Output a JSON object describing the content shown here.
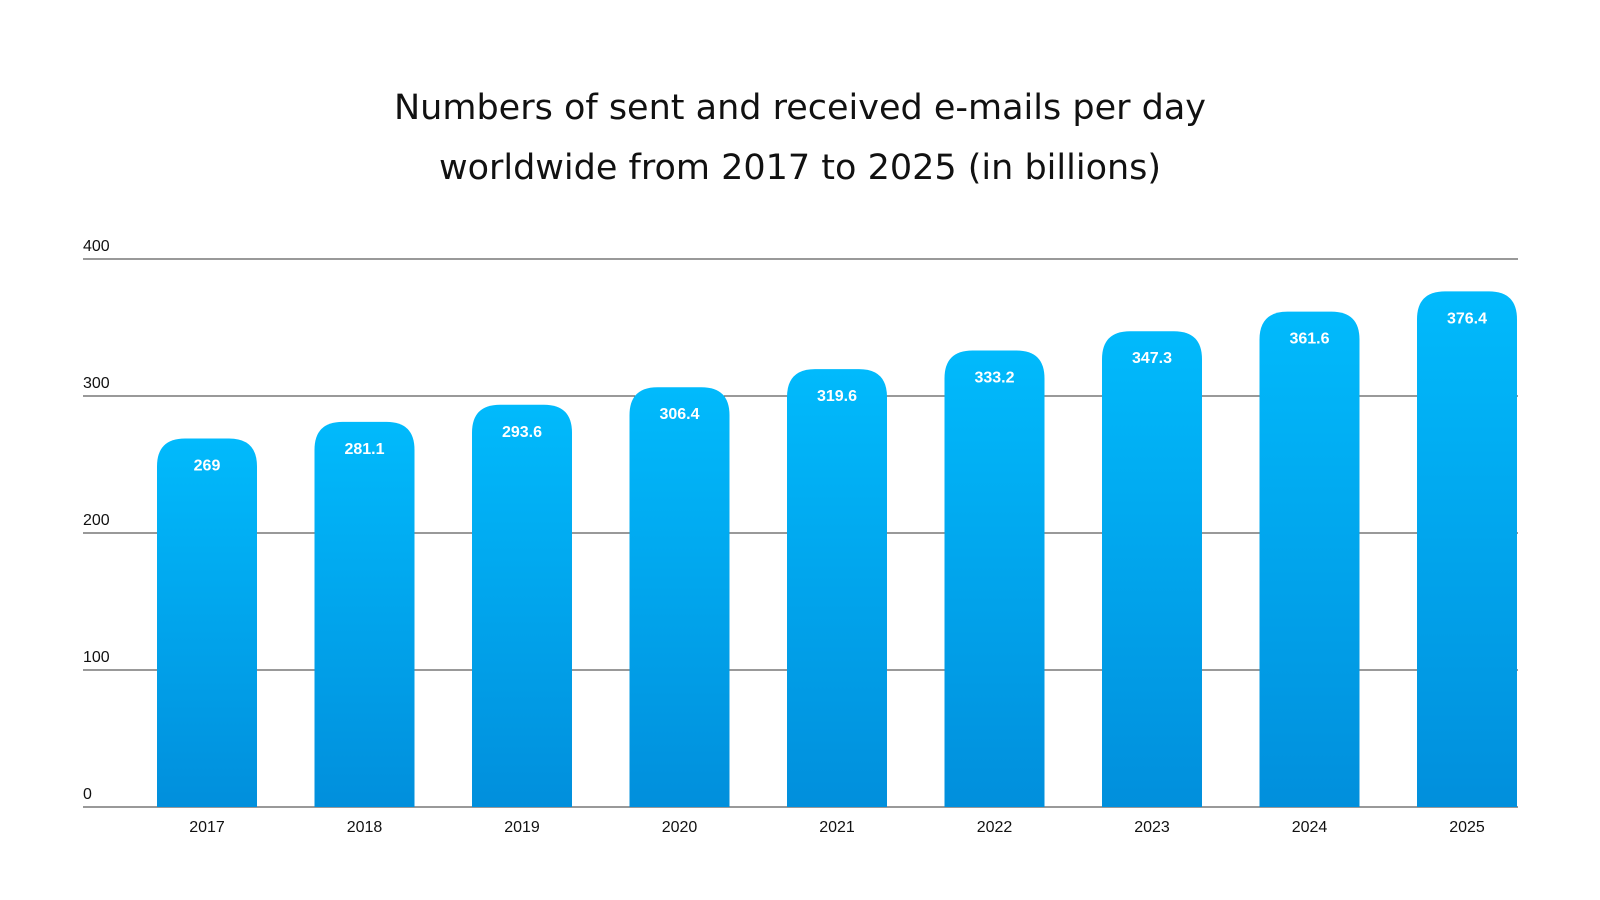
{
  "chart_data": {
    "type": "bar",
    "title": [
      "Numbers of sent and received e-mails per day",
      "worldwide from 2017 to 2025 (in billions)"
    ],
    "categories": [
      "2017",
      "2018",
      "2019",
      "2020",
      "2021",
      "2022",
      "2023",
      "2024",
      "2025"
    ],
    "values": [
      269,
      281.1,
      293.6,
      306.4,
      319.6,
      333.2,
      347.3,
      361.6,
      376.4
    ],
    "value_labels": [
      "269",
      "281.1",
      "293.6",
      "306.4",
      "319.6",
      "333.2",
      "347.3",
      "361.6",
      "376.4"
    ],
    "ylim": [
      0,
      400
    ],
    "yticks": [
      0,
      100,
      200,
      300,
      400
    ],
    "ytick_labels": [
      "0",
      "100",
      "200",
      "300",
      "400"
    ],
    "xlabel": "",
    "ylabel": "",
    "grid": true,
    "legend": "none",
    "colors": {
      "bar_top": "#01bafc",
      "bar_bottom": "#018fdc",
      "gridline": "#333333",
      "text": "#111111",
      "value_text": "#ffffff"
    }
  }
}
